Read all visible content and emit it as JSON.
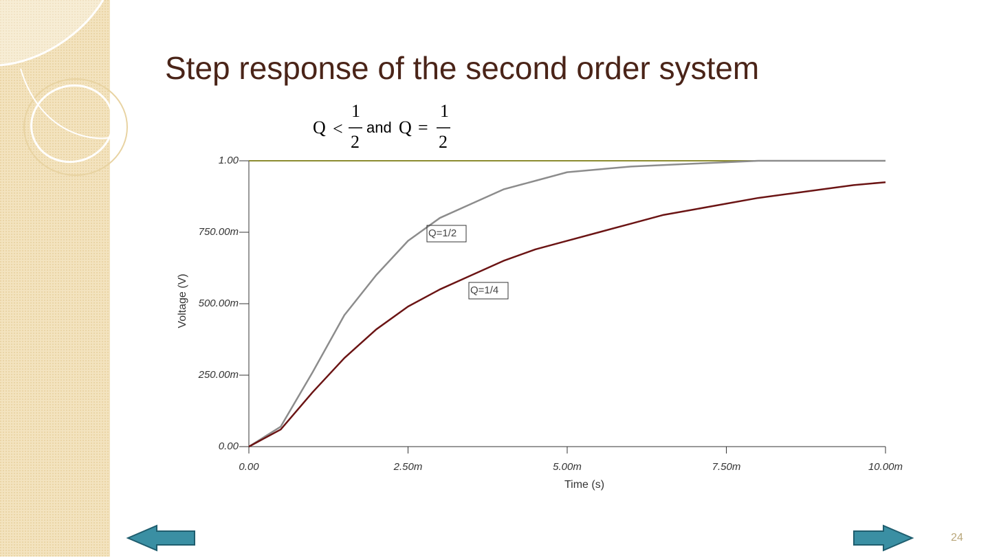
{
  "slide": {
    "title": "Step response of the second order system",
    "formula": {
      "q1": "Q",
      "op1": "<",
      "num1": "1",
      "den1": "2",
      "and": "and",
      "q2": "Q",
      "op2": "=",
      "num2": "1",
      "den2": "2"
    },
    "page_number": "24"
  },
  "chart_data": {
    "type": "line",
    "x_label": "Time (s)",
    "y_label": "Voltage (V)",
    "x": [
      0,
      0.0005,
      0.001,
      0.0015,
      0.002,
      0.0025,
      0.003,
      0.0035,
      0.004,
      0.0045,
      0.005,
      0.0055,
      0.006,
      0.0065,
      0.007,
      0.0075,
      0.008,
      0.0085,
      0.009,
      0.0095,
      0.01
    ],
    "series": [
      {
        "color": "#8b8b2e",
        "values": [
          1,
          1,
          1,
          1,
          1,
          1,
          1,
          1,
          1,
          1,
          1,
          1,
          1,
          1,
          1,
          1,
          1,
          1,
          1,
          1,
          1
        ]
      },
      {
        "name": "Q=1/2",
        "color": "#8c8c8c",
        "values": [
          0,
          0.07,
          0.26,
          0.46,
          0.6,
          0.72,
          0.8,
          0.85,
          0.9,
          0.93,
          0.96,
          0.97,
          0.98,
          0.985,
          0.99,
          0.995,
          1,
          1,
          1,
          1,
          1
        ]
      },
      {
        "name": "Q=1/4",
        "color": "#6b1414",
        "values": [
          0,
          0.06,
          0.19,
          0.31,
          0.41,
          0.49,
          0.55,
          0.6,
          0.65,
          0.69,
          0.72,
          0.75,
          0.78,
          0.81,
          0.83,
          0.85,
          0.87,
          0.885,
          0.9,
          0.915,
          0.925
        ]
      }
    ],
    "xlim": [
      0,
      0.01
    ],
    "ylim": [
      0,
      1
    ],
    "xticks": [
      {
        "value": 0,
        "label": "0.00"
      },
      {
        "value": 0.0025,
        "label": "2.50m"
      },
      {
        "value": 0.005,
        "label": "5.00m"
      },
      {
        "value": 0.0075,
        "label": "7.50m"
      },
      {
        "value": 0.01,
        "label": "10.00m"
      }
    ],
    "yticks": [
      {
        "value": 0,
        "label": "0.00"
      },
      {
        "value": 0.25,
        "label": "250.00m"
      },
      {
        "value": 0.5,
        "label": "500.00m"
      },
      {
        "value": 0.75,
        "label": "750.00m"
      },
      {
        "value": 1,
        "label": "1.00"
      }
    ]
  }
}
